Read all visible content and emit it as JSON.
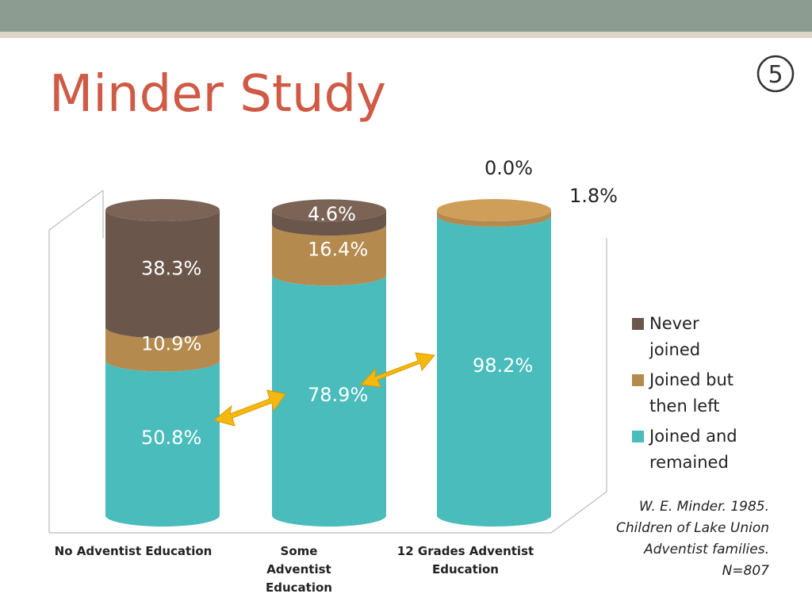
{
  "slide_number": "5",
  "chart_data": {
    "type": "cylinder-stacked-bar",
    "title": "Minder Study",
    "categories": [
      "No Adventist Education",
      "Some Adventist Education",
      "12 Grades Adventist Education"
    ],
    "ylim": [
      0,
      100
    ],
    "series": [
      {
        "name": "Joined and remained",
        "color": "#4bbcbc",
        "values": [
          50.8,
          78.9,
          98.2
        ],
        "value_labels": [
          "50.8%",
          "78.9%",
          "98.2%"
        ]
      },
      {
        "name": "Joined but then left",
        "color": "#b48a4e",
        "values": [
          10.9,
          16.4,
          1.8
        ],
        "value_labels": [
          "10.9%",
          "16.4%",
          "1.8%"
        ]
      },
      {
        "name": "Never joined",
        "color": "#6b564b",
        "values": [
          38.3,
          4.6,
          0.0
        ],
        "value_labels": [
          "38.3%",
          "4.6%",
          "0.0%"
        ]
      }
    ],
    "note": [
      "W. E. Minder. 1985.",
      "Children of Lake Union",
      "Adventist families.",
      "N=807"
    ]
  }
}
